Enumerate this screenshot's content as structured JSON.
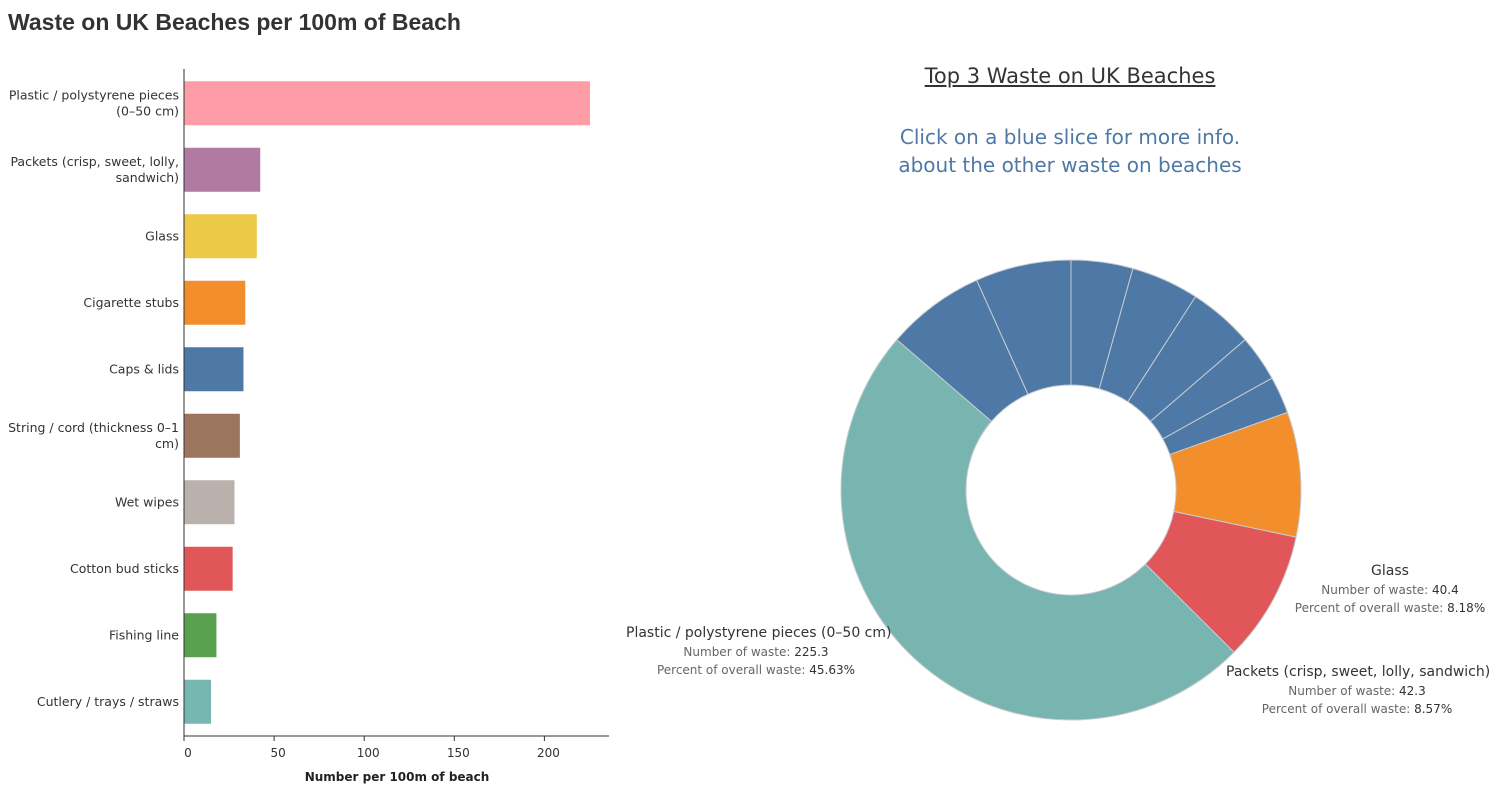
{
  "page_title": "Waste on UK Beaches per 100m of Beach",
  "colors": {
    "plastic": "#ff9da7",
    "packets": "#b07aa1",
    "glass": "#edc948",
    "cigarette": "#f28e2b",
    "caps": "#4e79a7",
    "string": "#9c755f",
    "wipes": "#bab0ac",
    "cotton": "#e15759",
    "fishing": "#59a14f",
    "cutlery": "#76b7b2",
    "donut_blue": "#4e79a7",
    "donut_teal": "#79b5b0",
    "donut_red": "#e15759",
    "donut_orange": "#f28e2b",
    "subtitle": "#4e79a7"
  },
  "chart_data": [
    {
      "type": "bar",
      "orientation": "horizontal",
      "categories": [
        [
          "Plastic / polystyrene pieces",
          "(0–50 cm)"
        ],
        [
          "Packets (crisp, sweet, lolly,",
          "sandwich)"
        ],
        [
          "Glass"
        ],
        [
          "Cigarette stubs"
        ],
        [
          "Caps & lids"
        ],
        [
          "String / cord (thickness 0–1",
          "cm)"
        ],
        [
          "Wet wipes"
        ],
        [
          "Cotton bud sticks"
        ],
        [
          "Fishing line"
        ],
        [
          "Cutlery / trays / straws"
        ]
      ],
      "values": [
        225.3,
        42.3,
        40.4,
        34,
        33,
        31,
        28,
        27,
        18,
        15
      ],
      "colors": [
        "#ff9da7",
        "#b07aa1",
        "#edc948",
        "#f28e2b",
        "#4e79a7",
        "#9c755f",
        "#bab0ac",
        "#e15759",
        "#59a14f",
        "#76b7b2"
      ],
      "xlabel": "Number per 100m of beach",
      "xticks": [
        0,
        50,
        100,
        150,
        200
      ],
      "xlim": [
        0,
        235
      ],
      "grid": false
    },
    {
      "type": "pie",
      "donut": true,
      "title": "Top 3 Waste on UK Beaches",
      "subtitle_lines": [
        "Click on a blue slice for more info.",
        "about the other waste on beaches"
      ],
      "slices": [
        {
          "label": "",
          "value": 20,
          "color": "#4e79a7"
        },
        {
          "label": "",
          "value": 22,
          "color": "#4e79a7"
        },
        {
          "label": "",
          "value": 21,
          "color": "#4e79a7"
        },
        {
          "label": "",
          "value": 15,
          "color": "#4e79a7"
        },
        {
          "label": "",
          "value": 12,
          "color": "#4e79a7"
        },
        {
          "label": "Glass",
          "value": 40.4,
          "color": "#f28e2b"
        },
        {
          "label": "Packets (crisp, sweet, lolly, sandwich)",
          "value": 42.3,
          "color": "#e15759"
        },
        {
          "label": "Plastic / polystyrene pieces (0–50 cm)",
          "value": 225.3,
          "color": "#79b5b0"
        },
        {
          "label": "",
          "value": 32,
          "color": "#4e79a7"
        },
        {
          "label": "",
          "value": 31,
          "color": "#4e79a7"
        }
      ],
      "callouts": {
        "glass": {
          "name": "Glass",
          "count_label": "Number of waste:",
          "count": "40.4",
          "pct_label": "Percent of overall waste:",
          "pct": "8.18%"
        },
        "packets": {
          "name": "Packets (crisp, sweet, lolly, sandwich)",
          "count_label": "Number of waste:",
          "count": "42.3",
          "pct_label": "Percent of overall waste:",
          "pct": "8.57%"
        },
        "plastic": {
          "name": "Plastic / polystyrene pieces (0–50 cm)",
          "count_label": "Number of waste:",
          "count": "225.3",
          "pct_label": "Percent of overall waste:",
          "pct": "45.63%"
        }
      }
    }
  ]
}
